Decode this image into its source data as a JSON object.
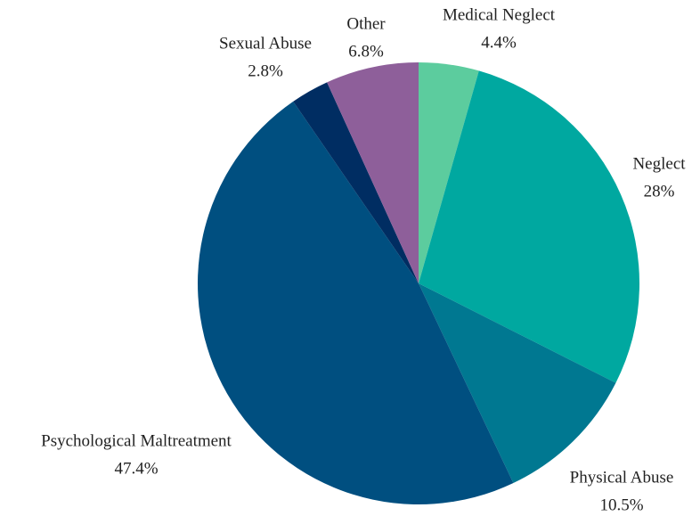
{
  "chart_data": {
    "type": "pie",
    "categories": [
      "Medical Neglect",
      "Neglect",
      "Physical Abuse",
      "Psychological Maltreatment",
      "Sexual Abuse",
      "Other"
    ],
    "values": [
      4.4,
      28,
      10.5,
      47.4,
      2.8,
      6.8
    ],
    "value_labels": [
      "4.4%",
      "28%",
      "10.5%",
      "47.4%",
      "2.8%",
      "6.8%"
    ],
    "colors": [
      "#5ccc9e",
      "#00a8a0",
      "#007891",
      "#004f80",
      "#002d62",
      "#8e5f9a"
    ]
  }
}
